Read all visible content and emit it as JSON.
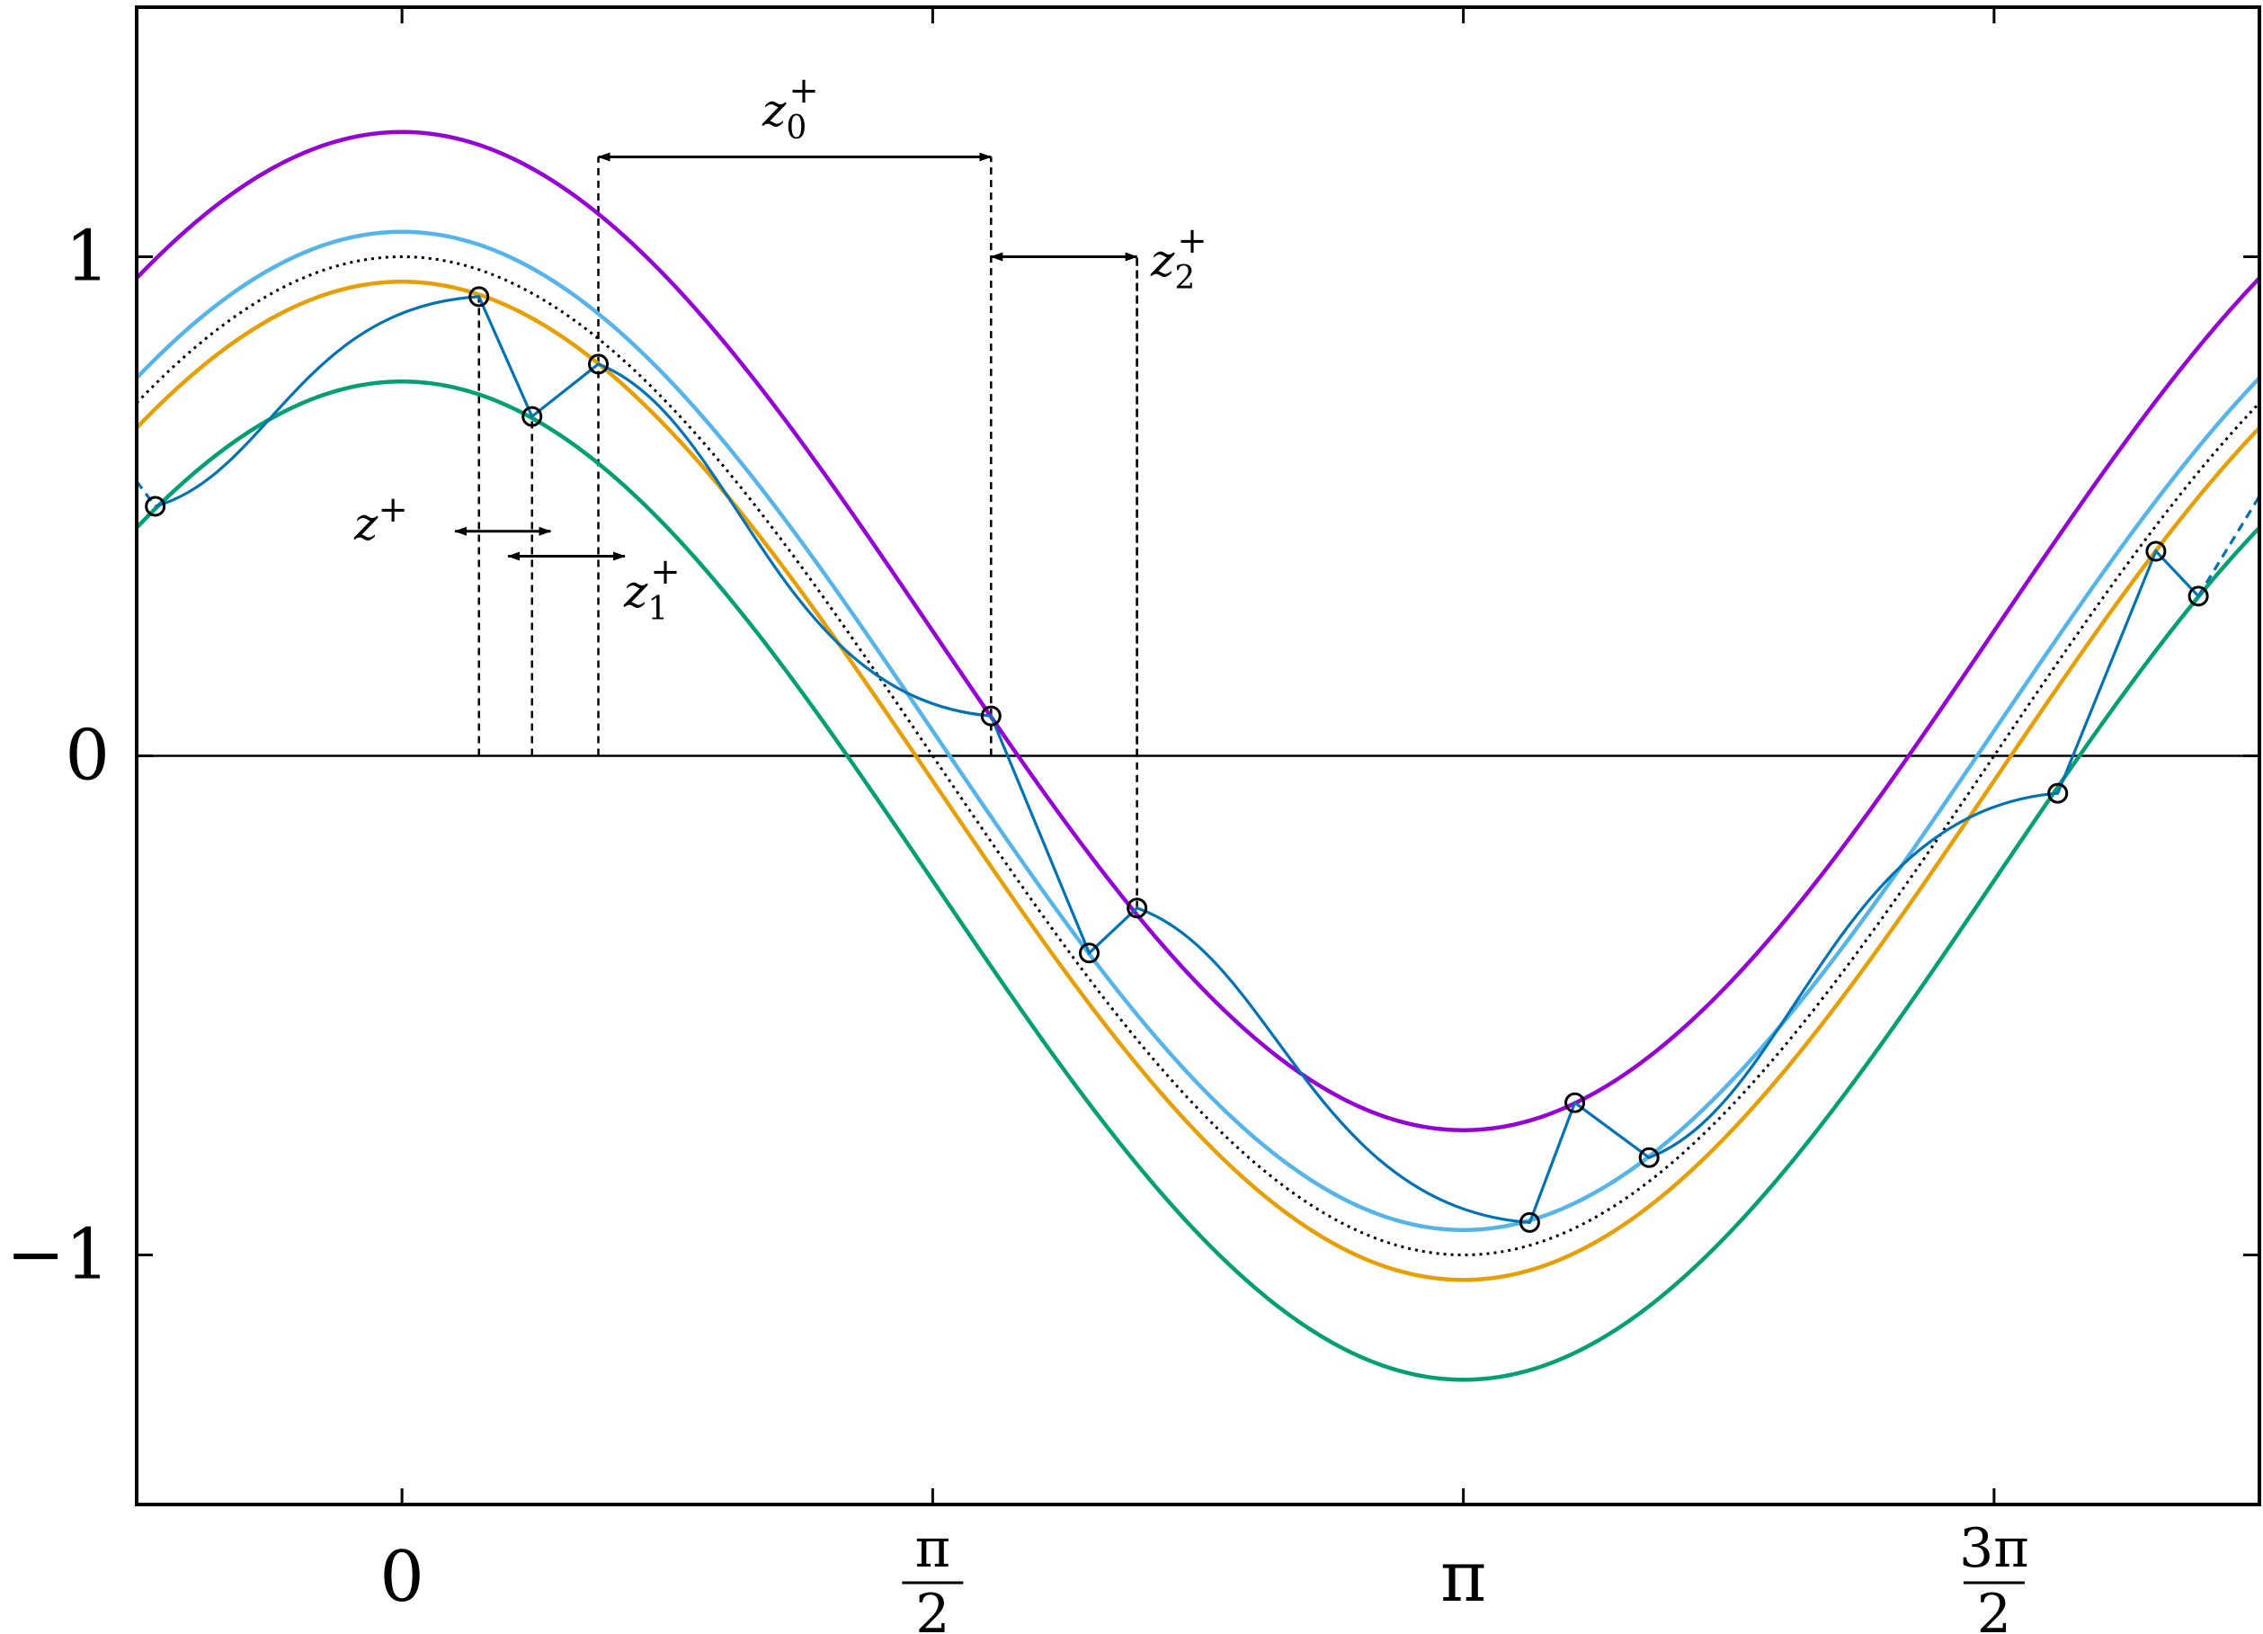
{
  "chart_data": {
    "type": "line",
    "xlim": [
      -0.5,
      3.5
    ],
    "ylim": [
      -1.5,
      1.5
    ],
    "grid": false,
    "legend": "none",
    "x_ticks": [
      {
        "value": 0,
        "label": "0"
      },
      {
        "value": 1,
        "label": "π/2",
        "num": "π",
        "den": "2"
      },
      {
        "value": 2,
        "label": "π"
      },
      {
        "value": 3,
        "label": "3π/2",
        "num": "3π",
        "den": "2"
      }
    ],
    "y_ticks": [
      {
        "value": 1,
        "label": "1"
      },
      {
        "value": 0,
        "label": "0"
      },
      {
        "value": -1,
        "label": "−1"
      }
    ],
    "series": [
      {
        "curve": "cosine",
        "offset": 0.25,
        "color": "#9400d3",
        "style": "solid"
      },
      {
        "curve": "cosine",
        "offset": 0.05,
        "color": "#56b4e9",
        "style": "solid"
      },
      {
        "curve": "cosine",
        "offset": 0.0,
        "color": "#000000",
        "style": "dotted"
      },
      {
        "curve": "cosine",
        "offset": -0.05,
        "color": "#e69f00",
        "style": "solid"
      },
      {
        "curve": "cosine",
        "offset": -0.25,
        "color": "#009e73",
        "style": "solid"
      }
    ],
    "trajectory": {
      "color": "#0072b2",
      "points": [
        [
          -0.465,
          0.5
        ],
        [
          0.145,
          0.92
        ],
        [
          0.245,
          0.68
        ],
        [
          0.37,
          0.785
        ],
        [
          1.11,
          0.08
        ],
        [
          1.295,
          -0.395
        ],
        [
          1.385,
          -0.305
        ],
        [
          2.125,
          -0.935
        ],
        [
          2.21,
          -0.695
        ],
        [
          2.35,
          -0.805
        ],
        [
          3.12,
          -0.075
        ],
        [
          3.305,
          0.41
        ],
        [
          3.385,
          0.32
        ]
      ],
      "head_extension": [
        -0.5,
        0.55
      ],
      "tail_extension": [
        3.5,
        0.52
      ]
    },
    "annotations": {
      "z_plus": {
        "label": "z",
        "sup": "+",
        "from": 0.1,
        "to": 0.28,
        "y": 0.45
      },
      "z1_plus": {
        "label": "z",
        "sub": "1",
        "sup": "+",
        "from": 0.2,
        "to": 0.42,
        "y": 0.4
      },
      "z0_plus": {
        "label": "z",
        "sub": "0",
        "sup": "+",
        "from": 0.37,
        "to": 1.11,
        "y": 1.2
      },
      "z2_plus": {
        "label": "z",
        "sub": "2",
        "sup": "+",
        "from": 1.11,
        "to": 1.385,
        "y": 1.0
      }
    },
    "guide_lines_x": [
      0.145,
      0.245,
      0.37,
      1.11,
      1.385
    ]
  }
}
